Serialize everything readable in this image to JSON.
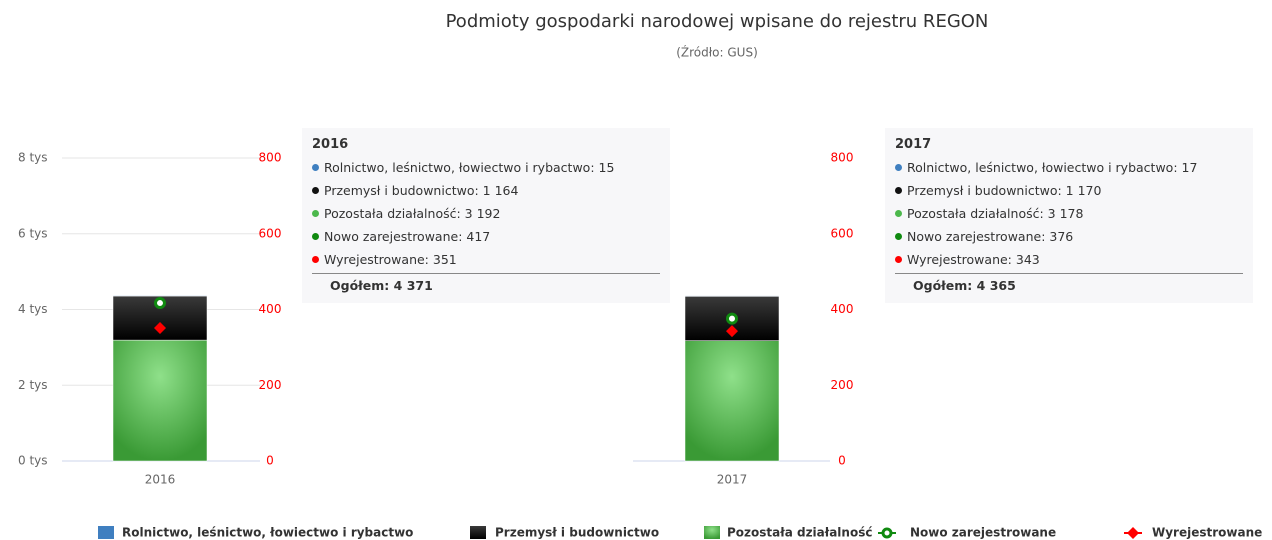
{
  "chart_data": {
    "type": "bar",
    "title": "Podmioty gospodarki narodowej wpisane do rejestru REGON",
    "subtitle": "(Źródło: GUS)",
    "categories": [
      "2016",
      "2017"
    ],
    "series": [
      {
        "name": "Rolnictwo, leśnictwo, łowiectwo i rybactwo",
        "color": "#3f7fc0",
        "values": [
          15,
          17
        ]
      },
      {
        "name": "Przemysł i budownictwo",
        "color": "#111111",
        "values": [
          1164,
          1170
        ]
      },
      {
        "name": "Pozostała działalność",
        "color": "#4cb84c",
        "values": [
          3192,
          3178
        ]
      },
      {
        "name": "Nowo zarejestrowane",
        "color": "#108a10",
        "values": [
          417,
          376
        ],
        "axis": "y2",
        "type": "line"
      },
      {
        "name": "Wyrejestrowane",
        "color": "#ff0000",
        "values": [
          351,
          343
        ],
        "axis": "y2",
        "type": "line"
      }
    ],
    "ylim": [
      0,
      8000
    ],
    "yticks": [
      {
        "value": 0,
        "label": "0 tys"
      },
      {
        "value": 2000,
        "label": "2 tys"
      },
      {
        "value": 4000,
        "label": "4 tys"
      },
      {
        "value": 6000,
        "label": "6 tys"
      },
      {
        "value": 8000,
        "label": "8 tys"
      }
    ],
    "y2lim": [
      0,
      800
    ],
    "y2ticks": [
      0,
      200,
      400,
      600,
      800
    ],
    "grid": true,
    "legend": "bottom"
  },
  "tooltips": [
    {
      "title": "2016",
      "lines": [
        "Rolnictwo, leśnictwo, łowiectwo i rybactwo: 15",
        "Przemysł i budownictwo: 1 164",
        "Pozostała działalność: 3 192",
        "Nowo zarejestrowane: 417",
        "Wyrejestrowane: 351"
      ],
      "total": "Ogółem: 4 371"
    },
    {
      "title": "2017",
      "lines": [
        "Rolnictwo, leśnictwo, łowiectwo i rybactwo: 17",
        "Przemysł i budownictwo: 1 170",
        "Pozostała działalność: 3 178",
        "Nowo zarejestrowane: 376",
        "Wyrejestrowane: 343"
      ],
      "total": "Ogółem: 4 365"
    }
  ]
}
